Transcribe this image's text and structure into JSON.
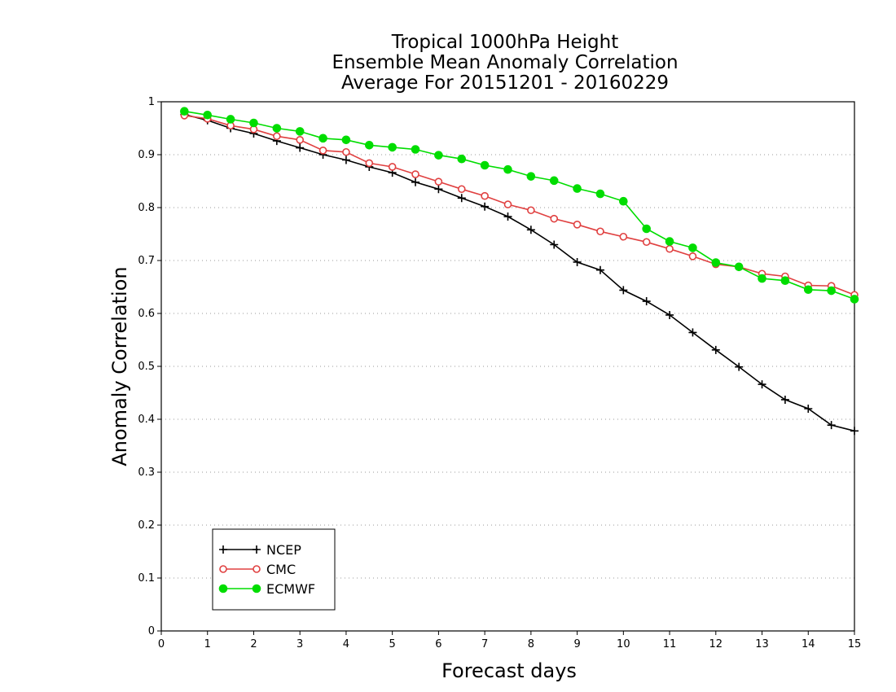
{
  "chart_data": {
    "type": "line",
    "title": [
      "Tropical 1000hPa Height",
      "Ensemble Mean Anomaly Correlation",
      "Average For 20151201 - 20160229"
    ],
    "xlabel": "Forecast days",
    "ylabel": "Anomaly Correlation",
    "xlim": [
      0,
      15
    ],
    "ylim": [
      0,
      1
    ],
    "xticks": [
      "0",
      "1",
      "2",
      "3",
      "4",
      "5",
      "6",
      "7",
      "8",
      "9",
      "10",
      "11",
      "12",
      "13",
      "14",
      "15"
    ],
    "yticks": [
      "0",
      "0.1",
      "0.2",
      "0.3",
      "0.4",
      "0.5",
      "0.6",
      "0.7",
      "0.8",
      "0.9",
      "1"
    ],
    "grid": "horizontal-dotted",
    "legend_position": "bottom-left",
    "x": [
      0.5,
      1,
      1.5,
      2,
      2.5,
      3,
      3.5,
      4,
      4.5,
      5,
      5.5,
      6,
      6.5,
      7,
      7.5,
      8,
      8.5,
      9,
      9.5,
      10,
      10.5,
      11,
      11.5,
      12,
      12.5,
      13,
      13.5,
      14,
      14.5,
      15
    ],
    "series": [
      {
        "name": "NCEP",
        "color": "#000000",
        "marker": "plus",
        "values": [
          0.976,
          0.965,
          0.95,
          0.94,
          0.926,
          0.913,
          0.9,
          0.89,
          0.877,
          0.866,
          0.848,
          0.835,
          0.818,
          0.802,
          0.783,
          0.758,
          0.73,
          0.697,
          0.682,
          0.644,
          0.623,
          0.597,
          0.564,
          0.531,
          0.499,
          0.466,
          0.437,
          0.42,
          0.389,
          0.378
        ]
      },
      {
        "name": "CMC",
        "color": "#e04040",
        "marker": "open-circle",
        "values": [
          0.974,
          0.968,
          0.955,
          0.948,
          0.935,
          0.928,
          0.908,
          0.905,
          0.884,
          0.877,
          0.863,
          0.849,
          0.835,
          0.822,
          0.806,
          0.795,
          0.779,
          0.768,
          0.755,
          0.745,
          0.735,
          0.722,
          0.708,
          0.693,
          0.688,
          0.675,
          0.67,
          0.653,
          0.652,
          0.635
        ]
      },
      {
        "name": "ECMWF",
        "color": "#00dd00",
        "marker": "filled-circle",
        "values": [
          0.982,
          0.975,
          0.967,
          0.96,
          0.95,
          0.944,
          0.931,
          0.928,
          0.918,
          0.914,
          0.91,
          0.899,
          0.892,
          0.88,
          0.872,
          0.859,
          0.851,
          0.836,
          0.826,
          0.812,
          0.76,
          0.736,
          0.724,
          0.696,
          0.688,
          0.666,
          0.662,
          0.645,
          0.643,
          0.627
        ]
      }
    ]
  }
}
